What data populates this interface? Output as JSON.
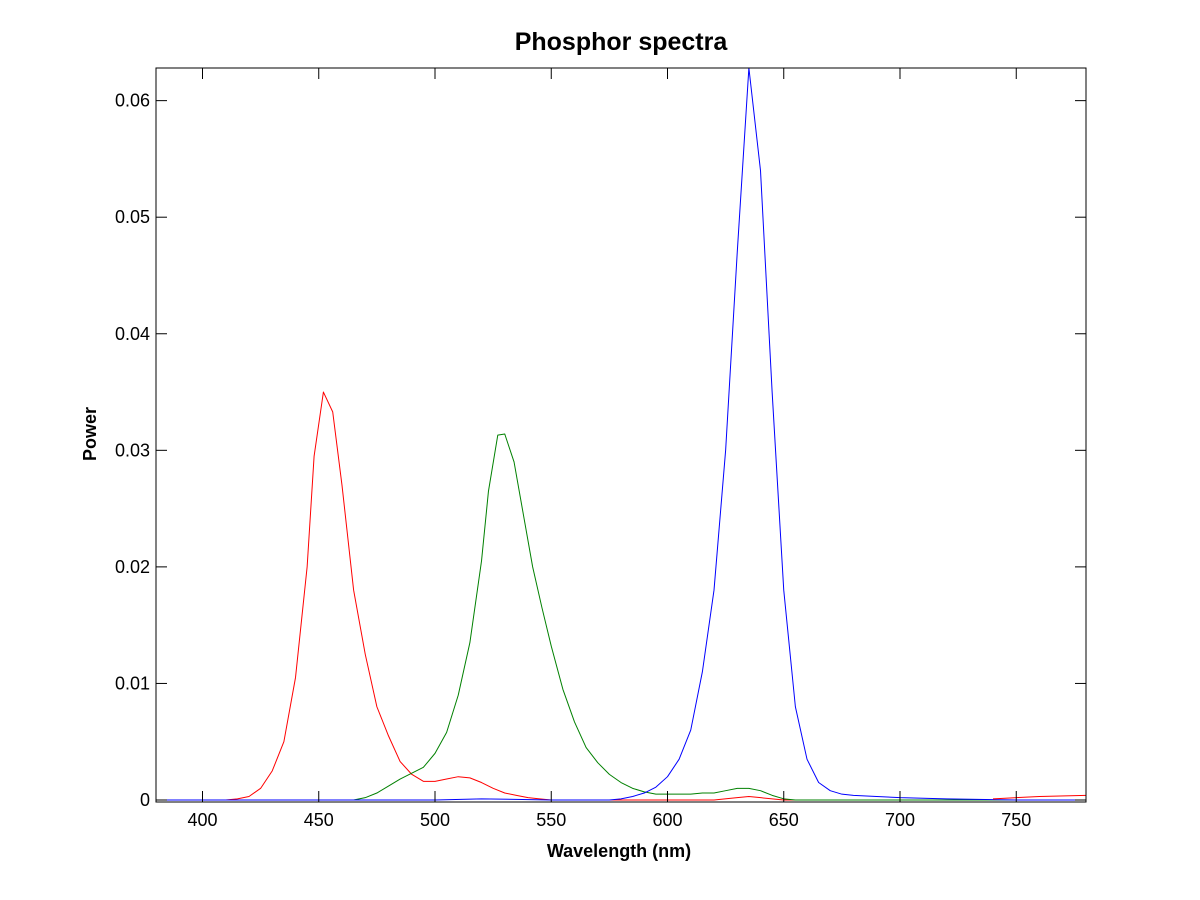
{
  "chart_data": {
    "type": "line",
    "title": "Phosphor spectra",
    "xlabel": "Wavelength (nm)",
    "ylabel": "Power",
    "xlim": [
      380,
      780
    ],
    "ylim": [
      0,
      0.0628
    ],
    "grid": false,
    "legend": "none",
    "x_ticks": [
      400,
      450,
      500,
      550,
      600,
      650,
      700,
      750
    ],
    "y_ticks": [
      0,
      0.01,
      0.02,
      0.03,
      0.04,
      0.05,
      0.06
    ],
    "x_tick_labels": [
      "400",
      "450",
      "500",
      "550",
      "600",
      "650",
      "700",
      "750"
    ],
    "y_tick_labels": [
      "0",
      "0.01",
      "0.02",
      "0.03",
      "0.04",
      "0.05",
      "0.06"
    ],
    "series": [
      {
        "color": "#ff0000",
        "points": [
          [
            380,
            0
          ],
          [
            410,
            0
          ],
          [
            415,
            0.0001
          ],
          [
            420,
            0.0003
          ],
          [
            425,
            0.001
          ],
          [
            430,
            0.0025
          ],
          [
            435,
            0.005
          ],
          [
            440,
            0.0105
          ],
          [
            445,
            0.02
          ],
          [
            448,
            0.0295
          ],
          [
            452,
            0.035
          ],
          [
            456,
            0.0333
          ],
          [
            460,
            0.027
          ],
          [
            465,
            0.018
          ],
          [
            470,
            0.0125
          ],
          [
            475,
            0.008
          ],
          [
            480,
            0.0055
          ],
          [
            485,
            0.0033
          ],
          [
            490,
            0.0022
          ],
          [
            495,
            0.0016
          ],
          [
            500,
            0.0016
          ],
          [
            505,
            0.0018
          ],
          [
            510,
            0.002
          ],
          [
            515,
            0.0019
          ],
          [
            520,
            0.0015
          ],
          [
            525,
            0.001
          ],
          [
            530,
            0.0006
          ],
          [
            535,
            0.0004
          ],
          [
            540,
            0.0002
          ],
          [
            545,
            0.0001
          ],
          [
            550,
            0
          ],
          [
            600,
            0
          ],
          [
            620,
            0
          ],
          [
            630,
            0.0002
          ],
          [
            635,
            0.0003
          ],
          [
            640,
            0.0002
          ],
          [
            650,
            0
          ],
          [
            780,
            0
          ]
        ]
      },
      {
        "color": "#008000",
        "points": [
          [
            380,
            0
          ],
          [
            450,
            0
          ],
          [
            465,
            0
          ],
          [
            470,
            0.0002
          ],
          [
            475,
            0.0006
          ],
          [
            480,
            0.0012
          ],
          [
            485,
            0.0018
          ],
          [
            490,
            0.0023
          ],
          [
            495,
            0.0028
          ],
          [
            500,
            0.004
          ],
          [
            505,
            0.0058
          ],
          [
            510,
            0.009
          ],
          [
            515,
            0.0135
          ],
          [
            520,
            0.0205
          ],
          [
            523,
            0.0265
          ],
          [
            527,
            0.0313
          ],
          [
            530,
            0.0314
          ],
          [
            534,
            0.029
          ],
          [
            538,
            0.0245
          ],
          [
            542,
            0.02
          ],
          [
            546,
            0.0165
          ],
          [
            550,
            0.0132
          ],
          [
            555,
            0.0095
          ],
          [
            560,
            0.0067
          ],
          [
            565,
            0.0045
          ],
          [
            570,
            0.0032
          ],
          [
            575,
            0.0022
          ],
          [
            580,
            0.0015
          ],
          [
            585,
            0.001
          ],
          [
            590,
            0.0007
          ],
          [
            595,
            0.0005
          ],
          [
            600,
            0.0005
          ],
          [
            605,
            0.0005
          ],
          [
            610,
            0.0005
          ],
          [
            615,
            0.0006
          ],
          [
            620,
            0.0006
          ],
          [
            625,
            0.0008
          ],
          [
            630,
            0.001
          ],
          [
            635,
            0.001
          ],
          [
            640,
            0.0008
          ],
          [
            645,
            0.0004
          ],
          [
            650,
            0.0001
          ],
          [
            655,
            0
          ],
          [
            780,
            0
          ]
        ]
      },
      {
        "color": "#0000ff",
        "points": [
          [
            380,
            0
          ],
          [
            450,
            0
          ],
          [
            500,
            0
          ],
          [
            520,
            0.0001
          ],
          [
            550,
            0
          ],
          [
            575,
            0
          ],
          [
            580,
            0.0001
          ],
          [
            585,
            0.0003
          ],
          [
            590,
            0.0006
          ],
          [
            595,
            0.0011
          ],
          [
            600,
            0.002
          ],
          [
            605,
            0.0035
          ],
          [
            610,
            0.006
          ],
          [
            615,
            0.011
          ],
          [
            620,
            0.018
          ],
          [
            625,
            0.03
          ],
          [
            630,
            0.047
          ],
          [
            635,
            0.0628
          ],
          [
            640,
            0.054
          ],
          [
            645,
            0.035
          ],
          [
            650,
            0.018
          ],
          [
            655,
            0.008
          ],
          [
            660,
            0.0035
          ],
          [
            665,
            0.0015
          ],
          [
            670,
            0.0008
          ],
          [
            675,
            0.0005
          ],
          [
            680,
            0.0004
          ],
          [
            690,
            0.0003
          ],
          [
            700,
            0.0002
          ],
          [
            720,
            0.0001
          ],
          [
            750,
            0
          ],
          [
            780,
            0
          ]
        ]
      },
      {
        "color": "#ff0000",
        "points": [
          [
            740,
            0.0001
          ],
          [
            760,
            0.0003
          ],
          [
            780,
            0.0004
          ]
        ]
      }
    ]
  }
}
